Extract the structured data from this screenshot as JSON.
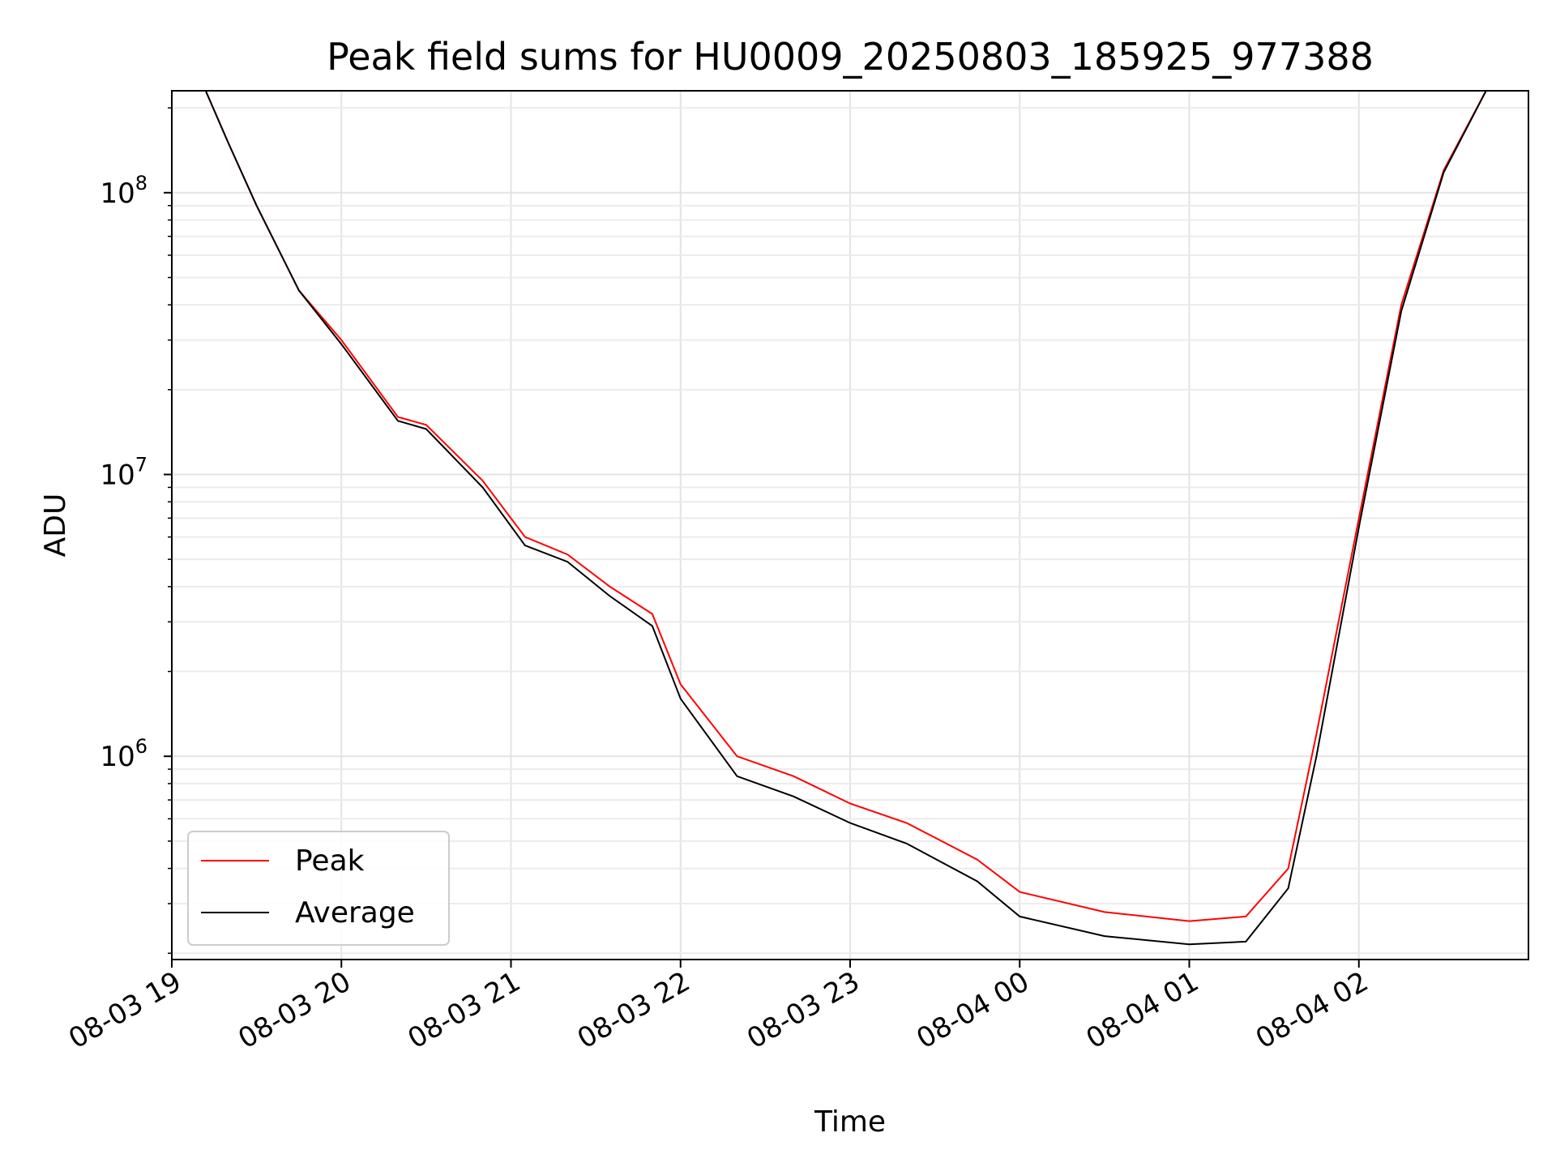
{
  "chart_data": {
    "type": "line",
    "title": "Peak field sums for HU0009_20250803_185925_977388",
    "xlabel": "Time",
    "ylabel": "ADU",
    "yscale": "log",
    "xlim": [
      "08-03 19:00",
      "08-04 03:00"
    ],
    "ylim": [
      190000,
      230000000
    ],
    "grid": true,
    "legend_position": "lower-left",
    "x_ticks": [
      "08-03 19",
      "08-03 20",
      "08-03 21",
      "08-03 22",
      "08-03 23",
      "08-04 00",
      "08-04 01",
      "08-04 02"
    ],
    "y_ticks": [
      {
        "base": "10",
        "exp": "6",
        "value": 1000000
      },
      {
        "base": "10",
        "exp": "7",
        "value": 10000000
      },
      {
        "base": "10",
        "exp": "8",
        "value": 100000000
      }
    ],
    "series": [
      {
        "name": "Peak",
        "color": "#ff0000",
        "points": [
          [
            "08-03 19:12",
            230000000
          ],
          [
            "08-03 19:20",
            150000000
          ],
          [
            "08-03 19:30",
            90000000
          ],
          [
            "08-03 19:45",
            45000000
          ],
          [
            "08-03 20:00",
            30000000
          ],
          [
            "08-03 20:20",
            16000000
          ],
          [
            "08-03 20:30",
            15000000
          ],
          [
            "08-03 20:50",
            9500000
          ],
          [
            "08-03 21:05",
            6000000
          ],
          [
            "08-03 21:20",
            5200000
          ],
          [
            "08-03 21:35",
            4000000
          ],
          [
            "08-03 21:50",
            3200000
          ],
          [
            "08-03 22:00",
            1800000
          ],
          [
            "08-03 22:20",
            1000000
          ],
          [
            "08-03 22:40",
            850000
          ],
          [
            "08-03 23:00",
            680000
          ],
          [
            "08-03 23:20",
            580000
          ],
          [
            "08-03 23:45",
            430000
          ],
          [
            "08-04 00:00",
            330000
          ],
          [
            "08-04 00:30",
            280000
          ],
          [
            "08-04 01:00",
            260000
          ],
          [
            "08-04 01:20",
            270000
          ],
          [
            "08-04 01:35",
            400000
          ],
          [
            "08-04 01:45",
            1200000
          ],
          [
            "08-04 02:00",
            7000000
          ],
          [
            "08-04 02:15",
            40000000
          ],
          [
            "08-04 02:30",
            120000000
          ],
          [
            "08-04 02:45",
            230000000
          ]
        ]
      },
      {
        "name": "Average",
        "color": "#000000",
        "points": [
          [
            "08-03 19:12",
            230000000
          ],
          [
            "08-03 19:20",
            150000000
          ],
          [
            "08-03 19:30",
            90000000
          ],
          [
            "08-03 19:45",
            45000000
          ],
          [
            "08-03 20:00",
            29000000
          ],
          [
            "08-03 20:20",
            15500000
          ],
          [
            "08-03 20:30",
            14500000
          ],
          [
            "08-03 20:50",
            9000000
          ],
          [
            "08-03 21:05",
            5600000
          ],
          [
            "08-03 21:20",
            4900000
          ],
          [
            "08-03 21:35",
            3700000
          ],
          [
            "08-03 21:50",
            2900000
          ],
          [
            "08-03 22:00",
            1600000
          ],
          [
            "08-03 22:20",
            850000
          ],
          [
            "08-03 22:40",
            720000
          ],
          [
            "08-03 23:00",
            580000
          ],
          [
            "08-03 23:20",
            490000
          ],
          [
            "08-03 23:45",
            360000
          ],
          [
            "08-04 00:00",
            270000
          ],
          [
            "08-04 00:30",
            230000
          ],
          [
            "08-04 01:00",
            215000
          ],
          [
            "08-04 01:20",
            220000
          ],
          [
            "08-04 01:35",
            340000
          ],
          [
            "08-04 01:45",
            1000000
          ],
          [
            "08-04 02:00",
            6500000
          ],
          [
            "08-04 02:15",
            38000000
          ],
          [
            "08-04 02:30",
            118000000
          ],
          [
            "08-04 02:45",
            230000000
          ]
        ]
      }
    ]
  }
}
